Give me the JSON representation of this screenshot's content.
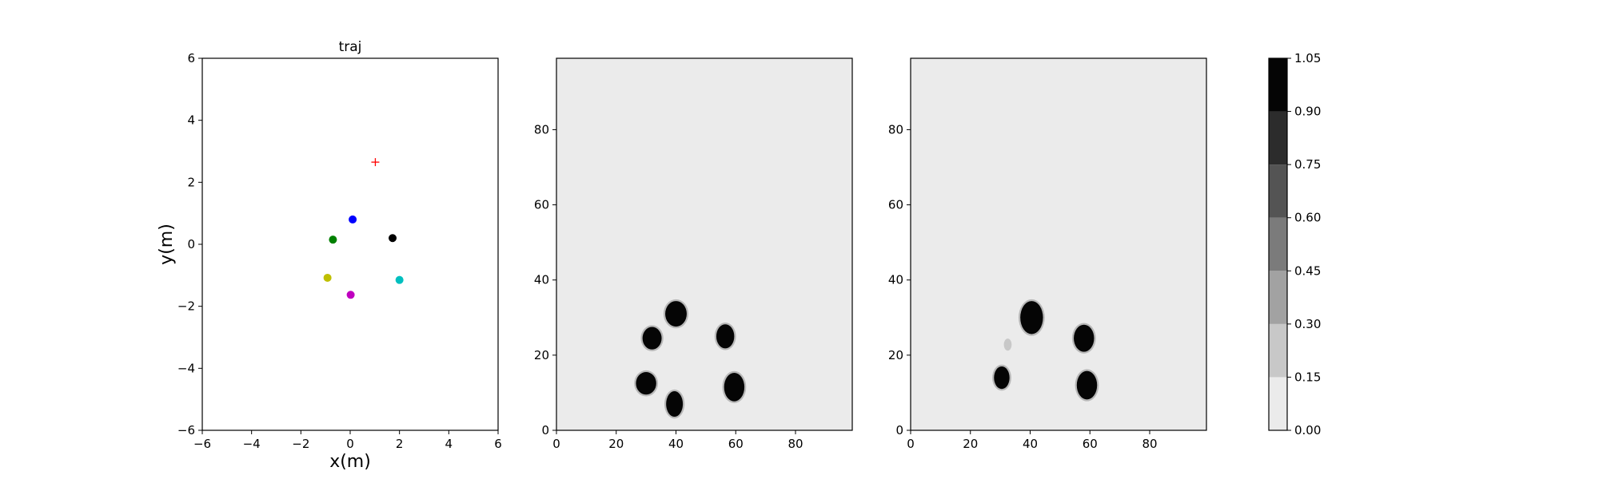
{
  "chart_data": [
    {
      "type": "scatter",
      "title": "traj",
      "xlabel": "x(m)",
      "ylabel": "y(m)",
      "xlim": [
        -6,
        6
      ],
      "ylim": [
        -6,
        6
      ],
      "xticks": [
        -6,
        -4,
        -2,
        0,
        2,
        4,
        6
      ],
      "yticks": [
        -6,
        -4,
        -2,
        0,
        2,
        4,
        6
      ],
      "grid": false,
      "points": [
        {
          "x": 0.1,
          "y": 0.8,
          "color": "#0000ff",
          "marker": "circle"
        },
        {
          "x": -0.7,
          "y": 0.15,
          "color": "#008000",
          "marker": "circle"
        },
        {
          "x": 1.72,
          "y": 0.2,
          "color": "#000000",
          "marker": "circle"
        },
        {
          "x": -0.92,
          "y": -1.08,
          "color": "#bfbf00",
          "marker": "circle"
        },
        {
          "x": 2.0,
          "y": -1.15,
          "color": "#00bfbf",
          "marker": "circle"
        },
        {
          "x": 0.02,
          "y": -1.63,
          "color": "#bf00bf",
          "marker": "circle"
        }
      ],
      "target": {
        "x": 1.02,
        "y": 2.65,
        "color": "#ff0000",
        "marker": "plus"
      }
    },
    {
      "type": "heatmap",
      "xlim": [
        0,
        99
      ],
      "ylim": [
        0,
        99
      ],
      "xticks": [
        0,
        20,
        40,
        60,
        80
      ],
      "yticks": [
        0,
        20,
        40,
        60,
        80
      ],
      "background_level": 0.0,
      "blobs": [
        {
          "cx": 40,
          "cy": 31,
          "rx": 3.6,
          "ry": 3.4,
          "value": 1.0
        },
        {
          "cx": 32,
          "cy": 24.5,
          "rx": 3.2,
          "ry": 3.0,
          "value": 1.0
        },
        {
          "cx": 56.5,
          "cy": 25,
          "rx": 3.0,
          "ry": 3.2,
          "value": 1.0
        },
        {
          "cx": 30,
          "cy": 12.5,
          "rx": 3.4,
          "ry": 3.0,
          "value": 1.0
        },
        {
          "cx": 59.5,
          "cy": 11.5,
          "rx": 3.4,
          "ry": 3.8,
          "value": 1.0
        },
        {
          "cx": 39.5,
          "cy": 7,
          "rx": 2.8,
          "ry": 3.4,
          "value": 1.0
        }
      ]
    },
    {
      "type": "heatmap",
      "xlim": [
        0,
        99
      ],
      "ylim": [
        0,
        99
      ],
      "xticks": [
        0,
        20,
        40,
        60,
        80
      ],
      "yticks": [
        0,
        20,
        40,
        60,
        80
      ],
      "background_level": 0.0,
      "blobs": [
        {
          "cx": 40.5,
          "cy": 30,
          "rx": 3.8,
          "ry": 4.4,
          "value": 1.0
        },
        {
          "cx": 58,
          "cy": 24.5,
          "rx": 3.4,
          "ry": 3.6,
          "value": 1.0
        },
        {
          "cx": 30.5,
          "cy": 14,
          "rx": 2.6,
          "ry": 3.0,
          "value": 1.0
        },
        {
          "cx": 59,
          "cy": 12,
          "rx": 3.4,
          "ry": 3.8,
          "value": 1.0
        },
        {
          "cx": 32.5,
          "cy": 22.8,
          "rx": 1.3,
          "ry": 1.6,
          "value": 0.2
        }
      ]
    }
  ],
  "colorbar": {
    "levels": [
      0.0,
      0.15,
      0.3,
      0.45,
      0.6,
      0.75,
      0.9,
      1.05
    ],
    "tick_labels": [
      "0.00",
      "0.15",
      "0.30",
      "0.45",
      "0.60",
      "0.75",
      "0.90",
      "1.05"
    ],
    "colors": [
      "#ebebeb",
      "#c8c8c8",
      "#a2a2a2",
      "#7b7b7b",
      "#545454",
      "#2c2c2c",
      "#050505"
    ]
  }
}
